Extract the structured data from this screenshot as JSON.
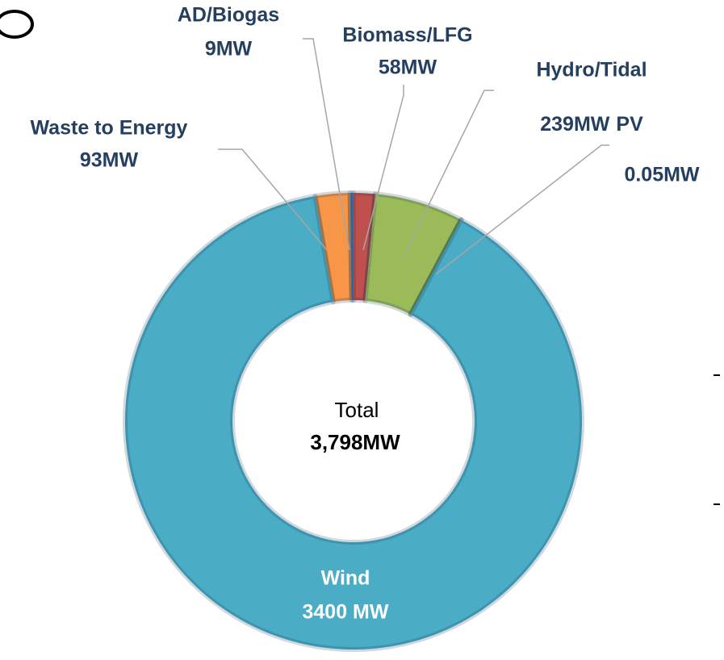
{
  "chart_data": {
    "type": "donut",
    "categories": [
      "Waste to Energy",
      "AD/Biogas",
      "Biomass/LFG",
      "Hydro/Tidal",
      "PV",
      "Wind"
    ],
    "values": [
      93,
      9,
      58,
      239,
      0.05,
      3400
    ],
    "value_labels": [
      "93MW",
      "9MW",
      "58MW",
      "239MW",
      "0.05MW",
      "3400 MW"
    ],
    "colors": [
      "#f79646",
      "#4f81bd",
      "#c0504d",
      "#9bbb59",
      "#8064a2",
      "#4bacc6"
    ],
    "center_label": "Total",
    "total_label": "3,798MW"
  }
}
